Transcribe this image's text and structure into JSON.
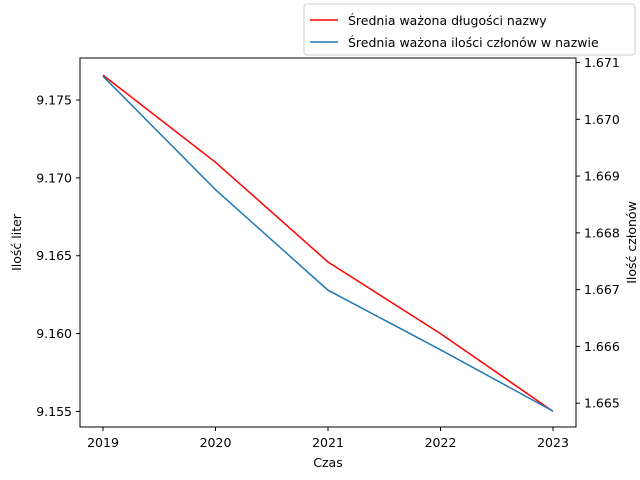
{
  "chart_data": {
    "type": "line",
    "xlabel": "Czas",
    "ylabel_left": "Ilość liter",
    "ylabel_right": "Ilość członów",
    "x": [
      2019,
      2020,
      2021,
      2022,
      2023
    ],
    "x_ticks": [
      "2019",
      "2020",
      "2021",
      "2022",
      "2023"
    ],
    "ylim_left": [
      9.154,
      9.1777
    ],
    "ylim_right": [
      1.66458,
      1.67108
    ],
    "yticks_left": [
      "9.155",
      "9.160",
      "9.165",
      "9.170",
      "9.175"
    ],
    "yticks_right": [
      "1.665",
      "1.666",
      "1.667",
      "1.668",
      "1.669",
      "1.670",
      "1.671"
    ],
    "legend_position": "top-right (above axes)",
    "grid": false,
    "series": [
      {
        "name": "Średnia ważona długości nazwy",
        "axis": "left",
        "color": "#ff0000",
        "values": [
          9.1766,
          9.171,
          9.1646,
          9.16,
          9.155
        ]
      },
      {
        "name": "Średnia ważona ilości członów w nazwie",
        "axis": "right",
        "color": "#1f77b4",
        "values": [
          1.67076,
          1.66876,
          1.66699,
          1.66594,
          1.66486
        ]
      }
    ]
  }
}
